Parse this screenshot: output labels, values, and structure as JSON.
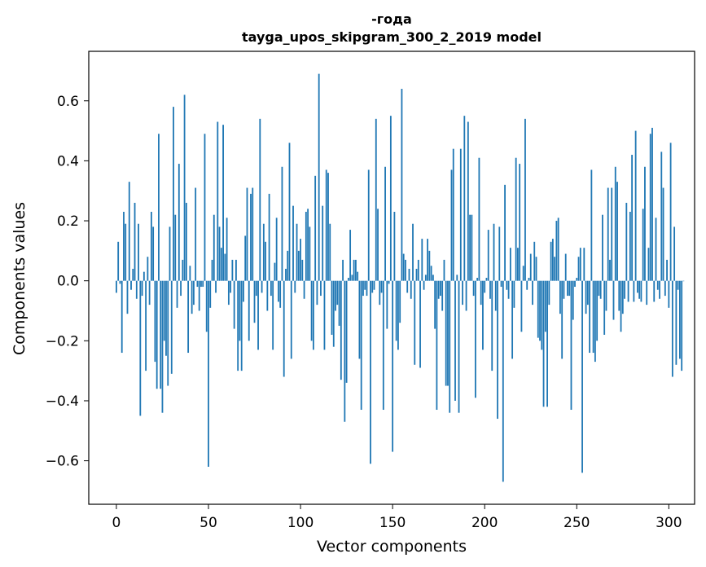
{
  "chart_data": {
    "type": "bar",
    "title": "-года",
    "subtitle": "tayga_upos_skipgram_300_2_2019 model",
    "xlabel": "Vector components",
    "ylabel": "Components values",
    "xlim": [
      -15,
      314
    ],
    "ylim": [
      -0.745,
      0.765
    ],
    "xticks": [
      0,
      50,
      100,
      150,
      200,
      250,
      300
    ],
    "xtick_labels": [
      "0",
      "50",
      "100",
      "150",
      "200",
      "250",
      "300"
    ],
    "yticks": [
      -0.6,
      -0.4,
      -0.2,
      0.0,
      0.2,
      0.4,
      0.6
    ],
    "ytick_labels": [
      "−0.6",
      "−0.4",
      "−0.2",
      "0.0",
      "0.2",
      "0.4",
      "0.6"
    ],
    "bar_color": "#1f77b4",
    "grid": false,
    "values": [
      -0.04,
      0.13,
      -0.01,
      -0.24,
      0.23,
      0.19,
      -0.11,
      0.33,
      -0.03,
      0.04,
      0.26,
      -0.06,
      0.19,
      -0.45,
      -0.05,
      0.03,
      -0.3,
      0.08,
      -0.08,
      0.23,
      0.18,
      -0.27,
      -0.36,
      0.49,
      -0.36,
      -0.44,
      -0.2,
      -0.25,
      -0.35,
      0.18,
      -0.31,
      0.58,
      0.22,
      -0.09,
      0.39,
      -0.05,
      0.07,
      0.62,
      0.26,
      -0.24,
      0.05,
      -0.11,
      -0.08,
      0.31,
      -0.02,
      -0.1,
      -0.02,
      -0.02,
      0.49,
      -0.17,
      -0.62,
      -0.09,
      0.07,
      0.22,
      -0.04,
      0.53,
      0.18,
      0.11,
      0.52,
      0.09,
      0.21,
      -0.08,
      -0.04,
      0.07,
      -0.16,
      0.07,
      -0.3,
      -0.2,
      -0.3,
      -0.07,
      0.15,
      0.31,
      -0.2,
      0.29,
      0.31,
      -0.14,
      -0.05,
      -0.23,
      0.54,
      -0.04,
      0.19,
      0.13,
      -0.1,
      0.29,
      -0.05,
      -0.23,
      0.06,
      0.21,
      -0.07,
      -0.09,
      0.38,
      -0.32,
      0.04,
      0.1,
      0.46,
      -0.26,
      0.25,
      -0.04,
      0.19,
      0.1,
      0.14,
      0.07,
      -0.06,
      0.23,
      0.24,
      0.18,
      -0.2,
      -0.23,
      0.35,
      -0.08,
      0.69,
      -0.05,
      0.25,
      -0.23,
      0.37,
      0.36,
      0.19,
      -0.18,
      -0.22,
      -0.1,
      -0.08,
      -0.15,
      -0.33,
      0.07,
      -0.47,
      -0.34,
      0.01,
      0.17,
      0.02,
      0.07,
      0.07,
      0.03,
      -0.26,
      -0.43,
      -0.05,
      -0.03,
      -0.05,
      0.37,
      -0.61,
      -0.04,
      -0.03,
      0.54,
      0.24,
      -0.08,
      -0.04,
      -0.43,
      0.38,
      -0.16,
      -0.01,
      0.55,
      -0.57,
      0.23,
      -0.2,
      -0.23,
      -0.14,
      0.64,
      0.09,
      0.07,
      -0.04,
      0.04,
      -0.06,
      0.19,
      -0.28,
      0.04,
      0.07,
      -0.29,
      0.14,
      -0.03,
      0.02,
      0.14,
      0.1,
      0.05,
      0.02,
      -0.16,
      -0.43,
      -0.06,
      -0.05,
      -0.1,
      0.07,
      -0.35,
      -0.35,
      -0.44,
      0.37,
      0.44,
      -0.4,
      0.02,
      -0.44,
      0.44,
      -0.08,
      0.55,
      -0.1,
      0.53,
      0.22,
      0.22,
      -0.05,
      -0.39,
      0.01,
      0.41,
      -0.08,
      -0.23,
      -0.04,
      0.01,
      0.17,
      -0.06,
      -0.3,
      0.19,
      -0.1,
      -0.46,
      0.18,
      -0.02,
      -0.67,
      0.32,
      -0.03,
      -0.06,
      0.11,
      -0.26,
      -0.09,
      0.41,
      0.11,
      0.39,
      -0.17,
      0.05,
      0.54,
      -0.03,
      0.01,
      0.09,
      -0.08,
      0.13,
      0.08,
      -0.19,
      -0.2,
      -0.23,
      -0.42,
      -0.17,
      -0.42,
      -0.08,
      0.13,
      0.14,
      0.08,
      0.2,
      0.21,
      -0.11,
      -0.26,
      -0.06,
      0.09,
      -0.05,
      -0.05,
      -0.43,
      -0.13,
      -0.02,
      0.01,
      0.08,
      0.11,
      -0.64,
      0.11,
      -0.11,
      -0.08,
      -0.24,
      0.37,
      -0.24,
      -0.27,
      -0.2,
      -0.05,
      -0.06,
      0.22,
      -0.18,
      -0.1,
      0.31,
      0.07,
      0.31,
      -0.13,
      0.38,
      0.33,
      -0.1,
      -0.17,
      -0.11,
      -0.06,
      0.26,
      -0.07,
      0.23,
      0.42,
      -0.07,
      0.5,
      -0.04,
      -0.06,
      -0.07,
      0.24,
      0.38,
      -0.08,
      0.11,
      0.49,
      0.51,
      -0.07,
      0.21,
      -0.03,
      -0.06,
      0.43,
      0.31,
      -0.05,
      0.07,
      -0.09,
      0.46,
      -0.32,
      0.18,
      -0.28,
      -0.03,
      -0.26,
      -0.3,
      0.0
    ]
  }
}
